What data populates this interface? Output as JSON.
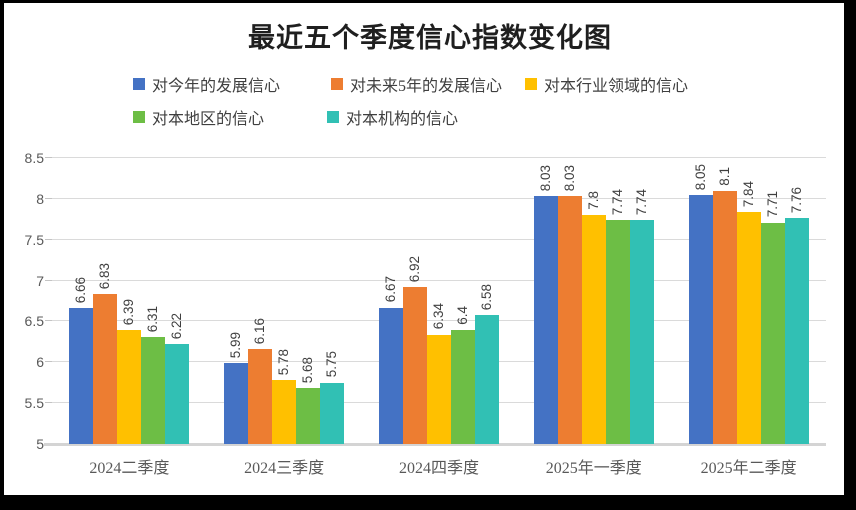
{
  "chart_data": {
    "type": "bar",
    "title": "最近五个季度信心指数变化图",
    "categories": [
      "2024二季度",
      "2024三季度",
      "2024四季度",
      "2025年一季度",
      "2025年二季度"
    ],
    "series": [
      {
        "name": "对今年的发展信心",
        "color": "#4472C4",
        "values": [
          6.66,
          5.99,
          6.67,
          8.03,
          8.05
        ]
      },
      {
        "name": "对未来5年的发展信心",
        "color": "#ED7D31",
        "values": [
          6.83,
          6.16,
          6.92,
          8.03,
          8.1
        ]
      },
      {
        "name": "对本行业领域的信心",
        "color": "#FFC000",
        "values": [
          6.39,
          5.78,
          6.34,
          7.8,
          7.84
        ]
      },
      {
        "name": "对本地区的信心",
        "color": "#6DBE45",
        "values": [
          6.31,
          5.68,
          6.4,
          7.74,
          7.71
        ]
      },
      {
        "name": "对本机构的信心",
        "color": "#31C0B4",
        "values": [
          6.22,
          5.75,
          6.58,
          7.74,
          7.76
        ]
      }
    ],
    "data_labels": [
      [
        "6.66",
        "5.99",
        "6.67",
        "8.03",
        "8.05"
      ],
      [
        "6.83",
        "6.16",
        "6.92",
        "8.03",
        "8.1"
      ],
      [
        "6.39",
        "5.78",
        "6.34",
        "7.8",
        "7.84"
      ],
      [
        "6.31",
        "5.68",
        "6.4",
        "7.74",
        "7.71"
      ],
      [
        "6.22",
        "5.75",
        "6.58",
        "7.74",
        "7.76"
      ]
    ],
    "ylim": [
      5,
      8.5
    ],
    "ytick_step": 0.5,
    "ytick_labels": [
      "5",
      "5.5",
      "6",
      "6.5",
      "7",
      "7.5",
      "8",
      "8.5"
    ],
    "grid": true,
    "legend_position": "top",
    "legend_rows": [
      [
        0,
        1,
        2
      ],
      [
        3,
        4
      ]
    ],
    "colors": {
      "background": "#FFFFFF",
      "frame": "#000000",
      "gridline": "#DADADA",
      "axis_line": "#D4D4D4",
      "axis_text": "#595959",
      "data_label_text": "#3F3F3F",
      "title_text": "#1F1F1F",
      "legend_text": "#3F3F3F"
    }
  }
}
